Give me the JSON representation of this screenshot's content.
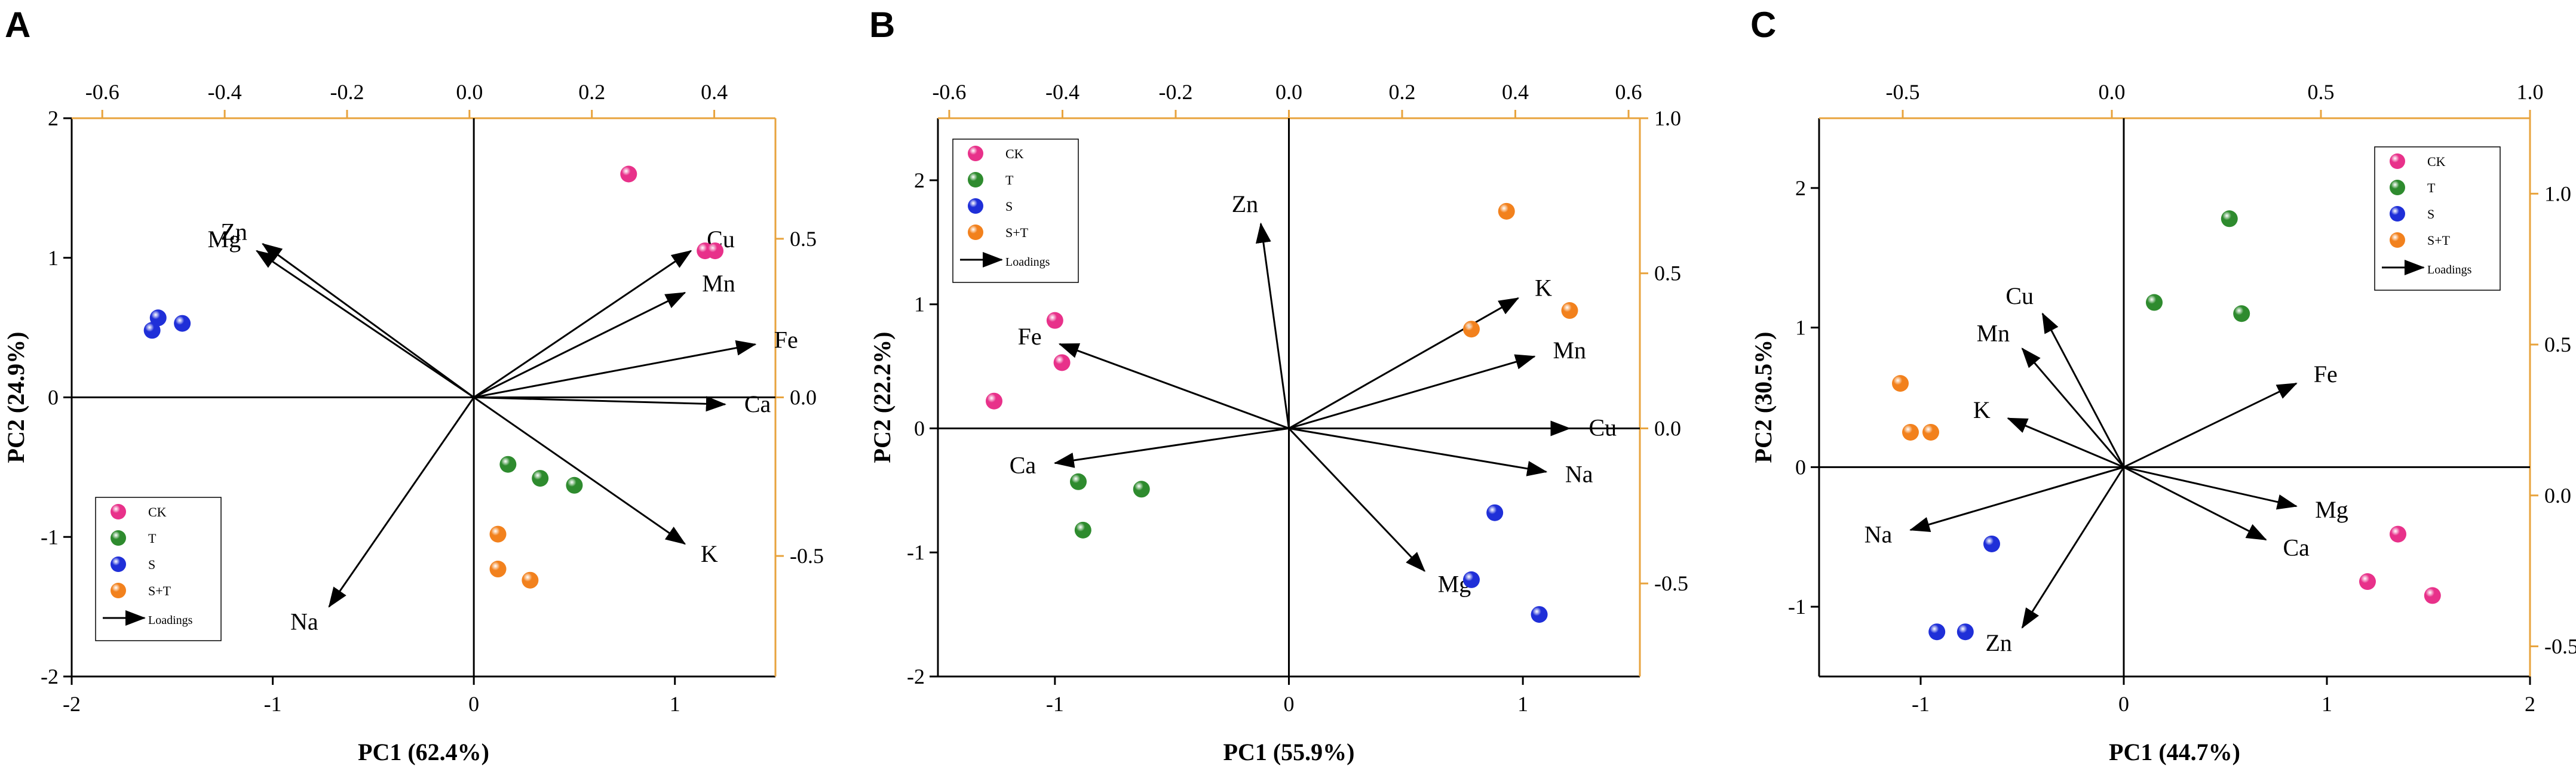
{
  "colors": {
    "axis": "#000000",
    "loading_axis": "#E8A33D",
    "CK": "#E8318A",
    "T": "#2E8B2E",
    "S": "#1F2FD8",
    "S+T": "#F2811D"
  },
  "chart_data": [
    {
      "panel": "A",
      "type": "scatter",
      "xlabel": "PC1 (62.4%)",
      "ylabel": "PC2 (24.9%)",
      "xlim": [
        -2,
        1.5
      ],
      "ylim": [
        -2,
        2
      ],
      "x_ticks": [
        -2,
        -1,
        0,
        1
      ],
      "x_tick_labels": [
        "-2",
        "-1",
        "0",
        "1"
      ],
      "y_ticks": [
        -2,
        -1,
        0,
        1,
        2
      ],
      "y_tick_labels": [
        "-2",
        "-1",
        "0",
        "1",
        "2"
      ],
      "top_ticks": [
        -0.6,
        -0.4,
        -0.2,
        0.0,
        0.2,
        0.4
      ],
      "top_tick_labels": [
        "-0.6",
        "-0.4",
        "-0.2",
        "0.0",
        "0.2",
        "0.4"
      ],
      "top_lim": [
        -0.65,
        0.5
      ],
      "right_ticks": [
        -0.5,
        0.0,
        0.5
      ],
      "right_tick_labels": [
        "-0.5",
        "0.0",
        "0.5"
      ],
      "right_lim": [
        -0.88,
        0.88
      ],
      "legend_position": "bottom-left",
      "legend": [
        "CK",
        "T",
        "S",
        "S+T",
        "Loadings"
      ],
      "series": [
        {
          "name": "CK",
          "points": [
            [
              0.77,
              1.6
            ],
            [
              1.15,
              1.05
            ],
            [
              1.2,
              1.05
            ]
          ]
        },
        {
          "name": "T",
          "points": [
            [
              0.17,
              -0.48
            ],
            [
              0.33,
              -0.58
            ],
            [
              0.5,
              -0.63
            ]
          ]
        },
        {
          "name": "S",
          "points": [
            [
              -1.6,
              0.48
            ],
            [
              -1.57,
              0.57
            ],
            [
              -1.45,
              0.53
            ]
          ]
        },
        {
          "name": "S+T",
          "points": [
            [
              0.12,
              -0.98
            ],
            [
              0.12,
              -1.23
            ],
            [
              0.28,
              -1.31
            ]
          ]
        }
      ],
      "loadings": [
        {
          "name": "Zn",
          "x": -1.05,
          "y": 1.1
        },
        {
          "name": "Mg",
          "x": -1.08,
          "y": 1.05
        },
        {
          "name": "Cu",
          "x": 1.08,
          "y": 1.05
        },
        {
          "name": "Mn",
          "x": 1.05,
          "y": 0.75
        },
        {
          "name": "Fe",
          "x": 1.4,
          "y": 0.38
        },
        {
          "name": "Ca",
          "x": 1.25,
          "y": -0.05
        },
        {
          "name": "K",
          "x": 1.05,
          "y": -1.05
        },
        {
          "name": "Na",
          "x": -0.72,
          "y": -1.5
        }
      ]
    },
    {
      "panel": "B",
      "type": "scatter",
      "xlabel": "PC1 (55.9%)",
      "ylabel": "PC2 (22.2%)",
      "xlim": [
        -1.5,
        1.5
      ],
      "ylim": [
        -2,
        2.5
      ],
      "x_ticks": [
        -1,
        0,
        1
      ],
      "x_tick_labels": [
        "-1",
        "0",
        "1"
      ],
      "y_ticks": [
        -2,
        -1,
        0,
        1,
        2
      ],
      "y_tick_labels": [
        "-2",
        "-1",
        "0",
        "1",
        "2"
      ],
      "top_ticks": [
        -0.6,
        -0.4,
        -0.2,
        0.0,
        0.2,
        0.4,
        0.6
      ],
      "top_tick_labels": [
        "-0.6",
        "-0.4",
        "-0.2",
        "0.0",
        "0.2",
        "0.4",
        "0.6"
      ],
      "top_lim": [
        -0.62,
        0.62
      ],
      "right_ticks": [
        -0.5,
        0.0,
        0.5,
        1.0
      ],
      "right_tick_labels": [
        "-0.5",
        "0.0",
        "0.5",
        "1.0"
      ],
      "right_lim": [
        -0.8,
        1.0
      ],
      "legend_position": "top-left",
      "legend": [
        "CK",
        "T",
        "S",
        "S+T",
        "Loadings"
      ],
      "series": [
        {
          "name": "CK",
          "points": [
            [
              -1.26,
              0.22
            ],
            [
              -1.0,
              0.87
            ],
            [
              -0.97,
              0.53
            ]
          ]
        },
        {
          "name": "T",
          "points": [
            [
              -0.9,
              -0.43
            ],
            [
              -0.88,
              -0.82
            ],
            [
              -0.63,
              -0.49
            ]
          ]
        },
        {
          "name": "S",
          "points": [
            [
              0.78,
              -1.22
            ],
            [
              0.88,
              -0.68
            ],
            [
              1.07,
              -1.5
            ]
          ]
        },
        {
          "name": "S+T",
          "points": [
            [
              0.78,
              0.8
            ],
            [
              0.93,
              1.75
            ],
            [
              1.2,
              0.95
            ]
          ]
        }
      ],
      "loadings": [
        {
          "name": "Zn",
          "x": -0.12,
          "y": 1.65
        },
        {
          "name": "Fe",
          "x": -0.98,
          "y": 0.68
        },
        {
          "name": "Ca",
          "x": -1.0,
          "y": -0.28
        },
        {
          "name": "K",
          "x": 0.98,
          "y": 1.05
        },
        {
          "name": "Mn",
          "x": 1.05,
          "y": 0.58
        },
        {
          "name": "Cu",
          "x": 1.2,
          "y": 0.0
        },
        {
          "name": "Na",
          "x": 1.1,
          "y": -0.35
        },
        {
          "name": "Mg",
          "x": 0.58,
          "y": -1.15
        }
      ]
    },
    {
      "panel": "C",
      "type": "scatter",
      "xlabel": "PC1 (44.7%)",
      "ylabel": "PC2 (30.5%)",
      "xlim": [
        -1.5,
        2
      ],
      "ylim": [
        -1.5,
        2.5
      ],
      "x_ticks": [
        -1,
        0,
        1,
        2
      ],
      "x_tick_labels": [
        "-1",
        "0",
        "1",
        "2"
      ],
      "y_ticks": [
        -1,
        0,
        1,
        2
      ],
      "y_tick_labels": [
        "-1",
        "0",
        "1",
        "2"
      ],
      "top_ticks": [
        -0.5,
        0.0,
        0.5,
        1.0
      ],
      "top_tick_labels": [
        "-0.5",
        "0.0",
        "0.5",
        "1.0"
      ],
      "top_lim": [
        -0.7,
        1.0
      ],
      "right_ticks": [
        -0.5,
        0.0,
        0.5,
        1.0
      ],
      "right_tick_labels": [
        "-0.5",
        "0.0",
        "0.5",
        "1.0"
      ],
      "right_lim": [
        -0.6,
        1.25
      ],
      "legend_position": "top-right",
      "legend": [
        "CK",
        "T",
        "S",
        "S+T",
        "Loadings"
      ],
      "series": [
        {
          "name": "CK",
          "points": [
            [
              1.2,
              -0.82
            ],
            [
              1.35,
              -0.48
            ],
            [
              1.52,
              -0.92
            ]
          ]
        },
        {
          "name": "T",
          "points": [
            [
              0.15,
              1.18
            ],
            [
              0.52,
              1.78
            ],
            [
              0.58,
              1.1
            ]
          ]
        },
        {
          "name": "S",
          "points": [
            [
              -0.65,
              -0.55
            ],
            [
              -0.92,
              -1.18
            ],
            [
              -0.78,
              -1.18
            ]
          ]
        },
        {
          "name": "S+T",
          "points": [
            [
              -1.1,
              0.6
            ],
            [
              -1.05,
              0.25
            ],
            [
              -0.95,
              0.25
            ]
          ]
        }
      ],
      "loadings": [
        {
          "name": "Cu",
          "x": -0.4,
          "y": 1.1
        },
        {
          "name": "Mn",
          "x": -0.5,
          "y": 0.85
        },
        {
          "name": "K",
          "x": -0.57,
          "y": 0.35
        },
        {
          "name": "Na",
          "x": -1.05,
          "y": -0.45
        },
        {
          "name": "Zn",
          "x": -0.5,
          "y": -1.15
        },
        {
          "name": "Fe",
          "x": 0.85,
          "y": 0.6
        },
        {
          "name": "Mg",
          "x": 0.85,
          "y": -0.28
        },
        {
          "name": "Ca",
          "x": 0.7,
          "y": -0.52
        }
      ]
    }
  ]
}
